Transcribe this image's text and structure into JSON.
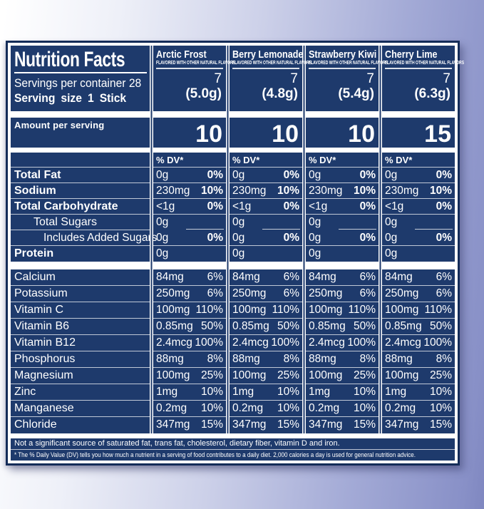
{
  "colors": {
    "panel_navy": "#1e3a6c",
    "panel_border": "#142c58",
    "background_left": "#ffffff",
    "background_right": "#8890c7",
    "text": "#ffffff"
  },
  "header": {
    "title": "Nutrition Facts",
    "servings_per_container": "Servings per container 28",
    "serving_size": "Serving size 1 Stick",
    "amount_per_serving": "Amount per serving",
    "dv_header": "% DV*"
  },
  "flavors": [
    {
      "name": "Arctic Frost",
      "subtitle": "FLAVORED WITH OTHER NATURAL FLAVORS",
      "servings": "7",
      "serving_weight": "(5.0g)",
      "calories": "10"
    },
    {
      "name": "Berry Lemonade",
      "subtitle": "FLAVORED WITH OTHER NATURAL FLAVORS",
      "servings": "7",
      "serving_weight": "(4.8g)",
      "calories": "10"
    },
    {
      "name": "Strawberry Kiwi",
      "subtitle": "FLAVORED WITH OTHER NATURAL FLAVORS",
      "servings": "7",
      "serving_weight": "(5.4g)",
      "calories": "10"
    },
    {
      "name": "Cherry Lime",
      "subtitle": "FLAVORED WITH OTHER NATURAL FLAVORS",
      "servings": "7",
      "serving_weight": "(6.3g)",
      "calories": "15"
    }
  ],
  "nutrient_rows": [
    {
      "label": "Total Fat",
      "bold": true,
      "indent": 0,
      "amount": "0g",
      "dv": "0%"
    },
    {
      "label": "Sodium",
      "bold": true,
      "indent": 0,
      "amount": "230mg",
      "dv": "10%"
    },
    {
      "label": "Total Carbohydrate",
      "bold": true,
      "indent": 0,
      "amount": "<1g",
      "dv": "0%"
    },
    {
      "label": "Total Sugars",
      "bold": false,
      "indent": 1,
      "amount": "0g",
      "dv": ""
    },
    {
      "label": "Includes Added Sugars",
      "bold": false,
      "indent": 2,
      "amount": "0g",
      "dv": "0%"
    },
    {
      "label": "Protein",
      "bold": true,
      "indent": 0,
      "amount": "0g",
      "dv": ""
    }
  ],
  "mineral_rows": [
    {
      "label": "Calcium",
      "amount": "84mg",
      "dv": "6%"
    },
    {
      "label": "Potassium",
      "amount": "250mg",
      "dv": "6%"
    },
    {
      "label": "Vitamin C",
      "amount": "100mg",
      "dv": "110%"
    },
    {
      "label": "Vitamin B6",
      "amount": "0.85mg",
      "dv": "50%"
    },
    {
      "label": "Vitamin B12",
      "amount": "2.4mcg",
      "dv": "100%"
    },
    {
      "label": "Phosphorus",
      "amount": "88mg",
      "dv": "8%"
    },
    {
      "label": "Magnesium",
      "amount": "100mg",
      "dv": "25%"
    },
    {
      "label": "Zinc",
      "amount": "1mg",
      "dv": "10%"
    },
    {
      "label": "Manganese",
      "amount": "0.2mg",
      "dv": "10%"
    },
    {
      "label": "Chloride",
      "amount": "347mg",
      "dv": "15%"
    }
  ],
  "footnotes": {
    "not_significant": "Not a significant source of saturated fat, trans fat, cholesterol, dietary fiber, vitamin D and iron.",
    "daily_value": "* The % Daily Value (DV) tells you how much a nutrient in a serving of food contributes to a daily diet. 2,000 calories a day is used for general nutrition advice."
  }
}
